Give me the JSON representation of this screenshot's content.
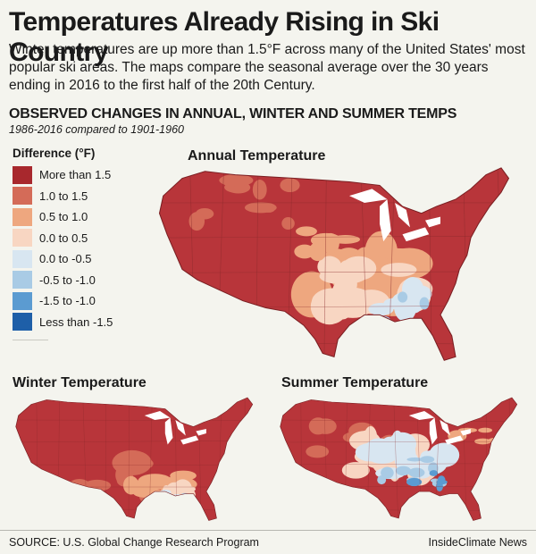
{
  "header": {
    "title": "Temperatures Already Rising in Ski Country",
    "subtitle": "Winter temperatures are up more than 1.5°F across many of the United States' most popular ski areas. The maps compare the seasonal average over the 30 years ending in 2016 to the first half of the 20th Century."
  },
  "section": {
    "title": "OBSERVED CHANGES IN ANNUAL, WINTER AND SUMMER TEMPS",
    "subtitle": "1986-2016 compared to 1901-1960"
  },
  "legend": {
    "title": "Difference (°F)",
    "items": [
      {
        "label": "More than 1.5",
        "color": "#a8282d"
      },
      {
        "label": "1.0 to 1.5",
        "color": "#d46b58"
      },
      {
        "label": "0.5 to 1.0",
        "color": "#eea77f"
      },
      {
        "label": "0.0 to 0.5",
        "color": "#f8d6c2"
      },
      {
        "label": "0.0 to -0.5",
        "color": "#d8e6f1"
      },
      {
        "label": "-0.5 to -1.0",
        "color": "#a9cbe5"
      },
      {
        "label": "-1.5 to -1.0",
        "color": "#5b9bd1"
      },
      {
        "label": "Less than -1.5",
        "color": "#1e5fa8"
      }
    ]
  },
  "maps": {
    "annual_title": "Annual Temperature",
    "winter_title": "Winter Temperature",
    "summer_title": "Summer Temperature"
  },
  "colors": {
    "land_base": "#b8353a",
    "water": "#ffffff",
    "background": "#f4f4ee"
  },
  "footer": {
    "source": "SOURCE: U.S. Global Change Research Program",
    "credit": "InsideClimate News"
  }
}
